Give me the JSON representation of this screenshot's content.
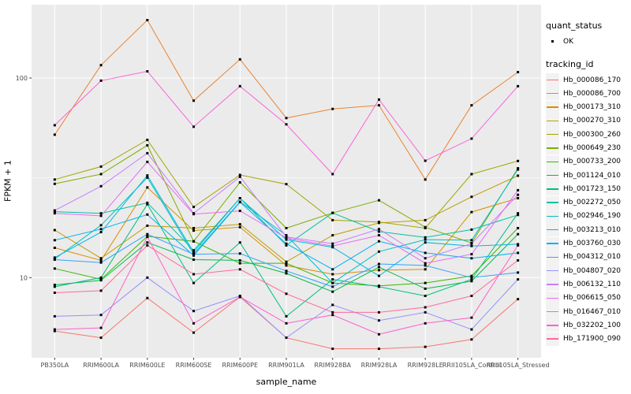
{
  "figure": {
    "kind": "ggplot-line-chart",
    "panel_bg": "#EBEBEB",
    "grid_color": "#FFFFFF",
    "tick_color": "#333333",
    "tick_label_color": "#4D4D4D",
    "point_color": "#000000"
  },
  "chart_data": {
    "type": "line",
    "title": "",
    "xlabel": "sample_name",
    "ylabel": "FPKM + 1",
    "y_scale": "log10",
    "ylim": [
      4.0,
      233.0
    ],
    "y_ticks": [
      {
        "label": "100",
        "value": 100
      },
      {
        "label": "10",
        "value": 10
      }
    ],
    "y_minor_ticks": [
      31.6
    ],
    "grid": true,
    "legend_position": "right",
    "categories": [
      "PB350LA",
      "RRIM600LA",
      "RRIM600LE",
      "RRIM600SE",
      "RRIM600PE",
      "RRIM901LA",
      "RRIM928BA",
      "RRIM928LA",
      "RRIM928LE",
      "RRII105LA_Control",
      "RRII105LA_Stressed"
    ],
    "series": [
      {
        "name": "Hb_000086_170",
        "color": "#F8766D",
        "values": [
          5.4,
          5.0,
          7.9,
          5.3,
          8.0,
          5.0,
          4.4,
          4.4,
          4.5,
          4.9,
          7.8
        ]
      },
      {
        "name": "Hb_000086_700",
        "color": "#EA8331",
        "values": [
          52,
          116,
          195,
          77,
          124,
          63,
          70,
          73,
          31,
          73,
          107
        ]
      },
      {
        "name": "Hb_000173_310",
        "color": "#D89000",
        "values": [
          14.1,
          12.2,
          28.3,
          17.2,
          17.9,
          11.5,
          10.4,
          10.9,
          11.0,
          21.3,
          25.0
        ]
      },
      {
        "name": "Hb_000270_310",
        "color": "#C09B00",
        "values": [
          17.3,
          12.5,
          18.2,
          17.7,
          18.5,
          12.0,
          16.3,
          18.8,
          19.4,
          25.4,
          32.4
        ]
      },
      {
        "name": "Hb_000300_260",
        "color": "#A3A500",
        "values": [
          31,
          36,
          49,
          22.6,
          32.7,
          29.4,
          19.4,
          19.0,
          17.7,
          33,
          38.4
        ]
      },
      {
        "name": "Hb_000649_230",
        "color": "#7CAE00",
        "values": [
          29.5,
          33,
          46,
          15.2,
          30,
          17.7,
          21.1,
          24.4,
          17.9,
          14.9,
          35.3
        ]
      },
      {
        "name": "Hb_000733_200",
        "color": "#39B600",
        "values": [
          11.1,
          9.8,
          16.1,
          15.2,
          11.8,
          11.8,
          9.4,
          9.1,
          9.4,
          10.2,
          17.7
        ]
      },
      {
        "name": "Hb_001124_010",
        "color": "#00BB4E",
        "values": [
          9.2,
          9.7,
          15.0,
          12.3,
          12.2,
          10.5,
          8.5,
          11.3,
          8.8,
          9.6,
          16.5
        ]
      },
      {
        "name": "Hb_001723_150",
        "color": "#00BF7D",
        "values": [
          9.0,
          10.0,
          23.3,
          9.4,
          15.0,
          6.4,
          9.8,
          9.0,
          8.1,
          9.8,
          21.0
        ]
      },
      {
        "name": "Hb_002272_050",
        "color": "#00C1A3",
        "values": [
          21.4,
          21.0,
          23.7,
          13.7,
          25.0,
          14.5,
          21.1,
          17.0,
          15.9,
          17.4,
          20.6
        ]
      },
      {
        "name": "Hb_002946_190",
        "color": "#00BFC4",
        "values": [
          12.4,
          18.3,
          31.7,
          13.1,
          24.0,
          16.3,
          9.4,
          13.5,
          15.5,
          15.4,
          34.8
        ]
      },
      {
        "name": "Hb_003213_010",
        "color": "#00BAE0",
        "values": [
          12.6,
          16.9,
          32.5,
          13.4,
          25.0,
          15.5,
          14.2,
          10.2,
          15.0,
          14.4,
          14.7
        ]
      },
      {
        "name": "Hb_003760_030",
        "color": "#00B0F6",
        "values": [
          15.4,
          17.5,
          20.7,
          12.9,
          23.9,
          14.8,
          11.0,
          15.2,
          13.3,
          12.5,
          13.3
        ]
      },
      {
        "name": "Hb_004312_010",
        "color": "#35A2FF",
        "values": [
          12.3,
          11.9,
          16.5,
          13.1,
          13.2,
          10.8,
          9.0,
          11.7,
          11.5,
          10.0,
          10.6
        ]
      },
      {
        "name": "Hb_004807_020",
        "color": "#9590FF",
        "values": [
          6.4,
          6.5,
          10.0,
          6.8,
          8.1,
          5.0,
          7.3,
          6.1,
          6.7,
          5.5,
          9.8
        ]
      },
      {
        "name": "Hb_006132_110",
        "color": "#C77CFF",
        "values": [
          21.7,
          28.7,
          42,
          21.0,
          32.0,
          16.0,
          14.8,
          17.5,
          12.5,
          14.8,
          26.0
        ]
      },
      {
        "name": "Hb_006615_050",
        "color": "#E76BF3",
        "values": [
          21.0,
          20.4,
          38,
          20.8,
          21.6,
          15.8,
          14.4,
          16.3,
          11.8,
          13.1,
          27.4
        ]
      },
      {
        "name": "Hb_016467_010",
        "color": "#FA62DB",
        "values": [
          58,
          97,
          108,
          57,
          91,
          58.6,
          33,
          78,
          38.5,
          49.7,
          91
        ]
      },
      {
        "name": "Hb_032202_100",
        "color": "#FF61CC",
        "values": [
          5.5,
          5.6,
          16.0,
          5.9,
          8.0,
          5.9,
          6.5,
          5.2,
          5.9,
          6.3,
          14.5
        ]
      },
      {
        "name": "Hb_171900_090",
        "color": "#FF6A98",
        "values": [
          8.4,
          8.6,
          14.5,
          10.4,
          11.0,
          8.3,
          6.7,
          6.7,
          7.1,
          8.1,
          12.2
        ]
      }
    ],
    "legend": {
      "quant_status_title": "quant_status",
      "quant_status_ok_label": "OK",
      "tracking_id_title": "tracking_id"
    }
  }
}
